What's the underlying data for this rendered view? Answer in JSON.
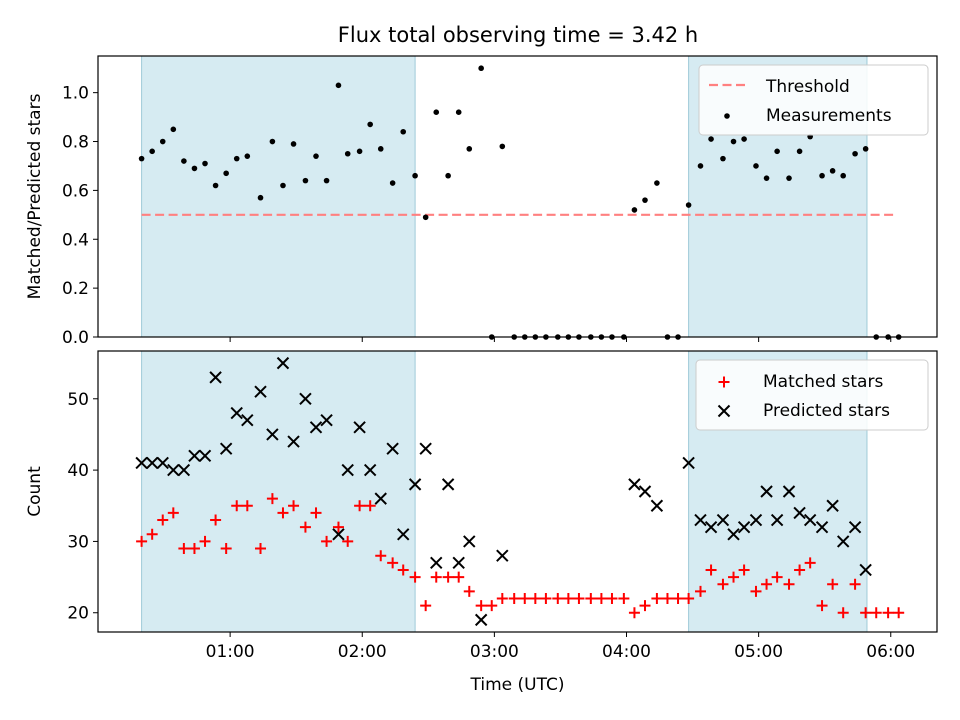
{
  "chart_data": [
    {
      "type": "scatter",
      "title": "Flux total observing time = 3.42 h",
      "ylabel": "Matched/Predicted stars",
      "ylim": [
        0,
        1.15
      ],
      "yticks": [
        0.0,
        0.2,
        0.4,
        0.6,
        0.8,
        1.0
      ],
      "ytick_labels": [
        "0.0",
        "0.2",
        "0.4",
        "0.6",
        "0.8",
        "1.0"
      ],
      "xlim_hours": [
        0.0,
        6.35
      ],
      "xticks_hours": [
        1,
        2,
        3,
        4,
        5,
        6
      ],
      "shaded_intervals_hours": [
        [
          0.33,
          2.4
        ],
        [
          4.47,
          5.82
        ]
      ],
      "threshold": {
        "name": "Threshold",
        "value": 0.5,
        "x_start": 0.33,
        "x_end": 6.05,
        "color": "#ff8080"
      },
      "legend": {
        "position": "top-right",
        "entries": [
          "Threshold",
          "Measurements"
        ]
      },
      "series": [
        {
          "name": "Measurements",
          "color": "#000000",
          "marker": "dot",
          "x": [
            0.33,
            0.41,
            0.49,
            0.57,
            0.65,
            0.73,
            0.81,
            0.89,
            0.97,
            1.05,
            1.13,
            1.23,
            1.32,
            1.4,
            1.48,
            1.57,
            1.65,
            1.73,
            1.82,
            1.89,
            1.98,
            2.06,
            2.14,
            2.23,
            2.31,
            2.4,
            2.48,
            2.56,
            2.65,
            2.73,
            2.81,
            2.9,
            2.98,
            3.06,
            3.15,
            3.23,
            3.31,
            3.39,
            3.48,
            3.56,
            3.64,
            3.73,
            3.81,
            3.89,
            3.98,
            4.06,
            4.14,
            4.23,
            4.31,
            4.39,
            4.47,
            4.56,
            4.64,
            4.73,
            4.81,
            4.89,
            4.98,
            5.06,
            5.14,
            5.23,
            5.31,
            5.39,
            5.48,
            5.56,
            5.64,
            5.73,
            5.81,
            5.89,
            5.98,
            6.06
          ],
          "y": [
            0.73,
            0.76,
            0.8,
            0.85,
            0.72,
            0.69,
            0.71,
            0.62,
            0.67,
            0.73,
            0.74,
            0.57,
            0.8,
            0.62,
            0.79,
            0.64,
            0.74,
            0.64,
            1.03,
            0.75,
            0.76,
            0.87,
            0.77,
            0.63,
            0.84,
            0.66,
            0.49,
            0.92,
            0.66,
            0.92,
            0.77,
            1.1,
            0.0,
            0.78,
            0.0,
            0.0,
            0.0,
            0.0,
            0.0,
            0.0,
            0.0,
            0.0,
            0.0,
            0.0,
            0.0,
            0.52,
            0.56,
            0.63,
            0.0,
            0.0,
            0.54,
            0.7,
            0.81,
            0.73,
            0.8,
            0.81,
            0.7,
            0.65,
            0.76,
            0.65,
            0.76,
            0.82,
            0.66,
            0.68,
            0.66,
            0.75,
            0.77,
            0.0,
            0.0,
            0.0
          ]
        }
      ]
    },
    {
      "type": "scatter",
      "xlabel": "Time (UTC)",
      "ylabel": "Count",
      "ylim": [
        17.3,
        56.7
      ],
      "yticks": [
        20,
        30,
        40,
        50
      ],
      "ytick_labels": [
        "20",
        "30",
        "40",
        "50"
      ],
      "xlim_hours": [
        0.0,
        6.35
      ],
      "xticks_hours": [
        1,
        2,
        3,
        4,
        5,
        6
      ],
      "xtick_labels": [
        "01:00",
        "02:00",
        "03:00",
        "04:00",
        "05:00",
        "06:00"
      ],
      "shaded_intervals_hours": [
        [
          0.33,
          2.4
        ],
        [
          4.47,
          5.82
        ]
      ],
      "legend": {
        "position": "top-right",
        "entries": [
          "Matched stars",
          "Predicted stars"
        ]
      },
      "series": [
        {
          "name": "Matched stars",
          "color": "#ff0000",
          "marker": "plus",
          "x": [
            0.33,
            0.41,
            0.49,
            0.57,
            0.65,
            0.73,
            0.81,
            0.89,
            0.97,
            1.05,
            1.13,
            1.23,
            1.32,
            1.4,
            1.48,
            1.57,
            1.65,
            1.73,
            1.82,
            1.89,
            1.98,
            2.06,
            2.14,
            2.23,
            2.31,
            2.4,
            2.48,
            2.56,
            2.65,
            2.73,
            2.81,
            2.9,
            2.98,
            3.06,
            3.15,
            3.23,
            3.31,
            3.39,
            3.48,
            3.56,
            3.64,
            3.73,
            3.81,
            3.89,
            3.98,
            4.06,
            4.14,
            4.23,
            4.31,
            4.39,
            4.47,
            4.56,
            4.64,
            4.73,
            4.81,
            4.89,
            4.98,
            5.06,
            5.14,
            5.23,
            5.31,
            5.39,
            5.48,
            5.56,
            5.64,
            5.73,
            5.81,
            5.89,
            5.98,
            6.06
          ],
          "y": [
            30,
            31,
            33,
            34,
            29,
            29,
            30,
            33,
            29,
            35,
            35,
            29,
            36,
            34,
            35,
            32,
            34,
            30,
            32,
            30,
            35,
            35,
            28,
            27,
            26,
            25,
            21,
            25,
            25,
            25,
            23,
            21,
            21,
            22,
            22,
            22,
            22,
            22,
            22,
            22,
            22,
            22,
            22,
            22,
            22,
            20,
            21,
            22,
            22,
            22,
            22,
            23,
            26,
            24,
            25,
            26,
            23,
            24,
            25,
            24,
            26,
            27,
            21,
            24,
            20,
            24,
            20,
            20,
            20,
            20
          ]
        },
        {
          "name": "Predicted stars",
          "color": "#000000",
          "marker": "x",
          "x": [
            0.33,
            0.41,
            0.49,
            0.57,
            0.65,
            0.73,
            0.81,
            0.89,
            0.97,
            1.05,
            1.13,
            1.23,
            1.32,
            1.4,
            1.48,
            1.57,
            1.65,
            1.73,
            1.82,
            1.89,
            1.98,
            2.06,
            2.14,
            2.23,
            2.31,
            2.4,
            2.48,
            2.56,
            2.65,
            2.73,
            2.81,
            2.9,
            3.06,
            4.06,
            4.14,
            4.23,
            4.47,
            4.56,
            4.64,
            4.73,
            4.81,
            4.89,
            4.98,
            5.06,
            5.14,
            5.23,
            5.31,
            5.39,
            5.48,
            5.56,
            5.64,
            5.73,
            5.81
          ],
          "y": [
            41,
            41,
            41,
            40,
            40,
            42,
            42,
            53,
            43,
            48,
            47,
            51,
            45,
            55,
            44,
            50,
            46,
            47,
            31,
            40,
            46,
            40,
            36,
            43,
            31,
            38,
            43,
            27,
            38,
            27,
            30,
            19,
            28,
            38,
            37,
            35,
            41,
            33,
            32,
            33,
            31,
            32,
            33,
            37,
            33,
            37,
            34,
            33,
            32,
            35,
            30,
            32,
            26
          ]
        }
      ]
    }
  ]
}
